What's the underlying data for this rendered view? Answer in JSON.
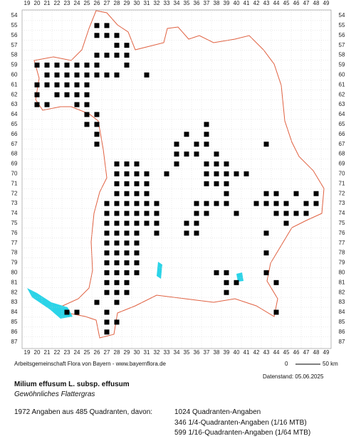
{
  "map": {
    "columns": [
      19,
      20,
      21,
      22,
      23,
      24,
      25,
      26,
      27,
      28,
      29,
      30,
      31,
      32,
      33,
      34,
      35,
      36,
      37,
      38,
      39,
      40,
      41,
      42,
      43,
      44,
      45,
      46,
      47,
      48,
      49
    ],
    "rows": [
      54,
      55,
      56,
      57,
      58,
      59,
      60,
      61,
      62,
      63,
      64,
      65,
      66,
      67,
      68,
      69,
      70,
      71,
      72,
      73,
      74,
      75,
      76,
      77,
      78,
      79,
      80,
      81,
      82,
      83,
      84,
      85,
      86,
      87
    ],
    "occurrences": [
      {
        "row": 55,
        "cols": [
          26,
          27
        ]
      },
      {
        "row": 56,
        "cols": [
          26,
          27,
          28
        ]
      },
      {
        "row": 57,
        "cols": [
          28,
          29
        ]
      },
      {
        "row": 58,
        "cols": [
          26,
          27,
          28,
          29
        ]
      },
      {
        "row": 59,
        "cols": [
          20,
          21,
          22,
          23,
          24,
          25,
          26,
          29
        ]
      },
      {
        "row": 60,
        "cols": [
          21,
          22,
          23,
          24,
          25,
          26,
          27,
          28,
          31
        ]
      },
      {
        "row": 61,
        "cols": [
          20,
          21,
          22,
          23,
          24,
          25
        ]
      },
      {
        "row": 62,
        "cols": [
          20,
          22,
          23,
          24,
          25
        ]
      },
      {
        "row": 63,
        "cols": [
          20,
          21,
          24,
          25
        ]
      },
      {
        "row": 64,
        "cols": [
          25,
          26
        ]
      },
      {
        "row": 65,
        "cols": [
          25,
          26,
          37
        ]
      },
      {
        "row": 66,
        "cols": [
          26,
          35,
          37
        ]
      },
      {
        "row": 67,
        "cols": [
          26,
          34,
          36,
          37,
          43
        ]
      },
      {
        "row": 68,
        "cols": [
          34,
          35,
          36,
          38
        ]
      },
      {
        "row": 69,
        "cols": [
          28,
          29,
          30,
          34,
          37,
          38,
          39
        ]
      },
      {
        "row": 70,
        "cols": [
          28,
          29,
          30,
          31,
          33,
          37,
          38,
          39,
          40,
          41
        ]
      },
      {
        "row": 71,
        "cols": [
          28,
          29,
          30,
          31,
          37,
          38,
          39
        ]
      },
      {
        "row": 72,
        "cols": [
          28,
          29,
          30,
          31,
          39,
          43,
          44,
          46,
          48
        ]
      },
      {
        "row": 73,
        "cols": [
          27,
          28,
          29,
          30,
          31,
          32,
          36,
          37,
          38,
          39,
          42,
          43,
          44,
          45,
          47,
          48
        ]
      },
      {
        "row": 74,
        "cols": [
          27,
          28,
          29,
          30,
          31,
          32,
          36,
          37,
          40,
          44,
          45,
          46,
          47
        ]
      },
      {
        "row": 75,
        "cols": [
          27,
          28,
          29,
          30,
          31,
          32,
          35,
          36,
          45
        ]
      },
      {
        "row": 76,
        "cols": [
          27,
          28,
          29,
          30,
          32,
          35,
          36,
          43
        ]
      },
      {
        "row": 77,
        "cols": [
          27,
          28,
          29,
          30
        ]
      },
      {
        "row": 78,
        "cols": [
          27,
          28,
          29,
          30,
          43
        ]
      },
      {
        "row": 79,
        "cols": [
          27,
          28,
          29,
          30
        ]
      },
      {
        "row": 80,
        "cols": [
          27,
          28,
          29,
          30,
          38,
          39,
          43
        ]
      },
      {
        "row": 81,
        "cols": [
          27,
          28,
          29,
          39,
          40,
          44
        ]
      },
      {
        "row": 82,
        "cols": [
          27,
          28,
          29,
          39
        ]
      },
      {
        "row": 83,
        "cols": [
          26,
          28
        ]
      },
      {
        "row": 84,
        "cols": [
          23,
          24,
          27,
          44
        ]
      },
      {
        "row": 85,
        "cols": [
          27,
          28
        ]
      },
      {
        "row": 86,
        "cols": [
          27
        ]
      }
    ],
    "credit": "Arbeitsgemeinschaft Flora von Bayern - www.bayernflora.de",
    "scale_start": "0",
    "scale_end": "50 km",
    "date": "Datenstand: 05.06.2025",
    "taxon": "Milium effusum L. subsp. effusum",
    "common_name": "Gewöhnliches Flattergras",
    "summary": "1972 Angaben aus 485 Quadranten, davon:",
    "counts": [
      "1024 Quadranten-Angaben",
      "346 1/4-Quadranten-Angaben (1/16 MTB)",
      "599 1/16-Quadranten-Angaben (1/64 MTB)"
    ]
  }
}
